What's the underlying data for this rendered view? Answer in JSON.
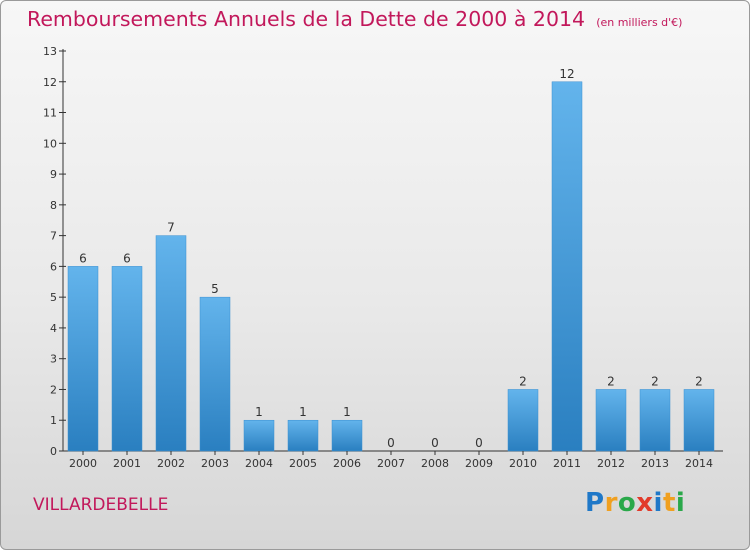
{
  "title": "Remboursements Annuels de la Dette de 2000 à 2014",
  "unit_note": "(en milliers d'€)",
  "commune": "VILLARDEBELLE",
  "brand": {
    "letters": [
      "P",
      "r",
      "o",
      "x",
      "i",
      "t",
      "i"
    ],
    "colors": [
      "#1f78c8",
      "#f0a020",
      "#2aa84a",
      "#e23a2a",
      "#1f78c8",
      "#f0a020",
      "#2aa84a"
    ]
  },
  "colors": {
    "title": "#c2185b",
    "bar_light": "#63b4ec",
    "bar_dark": "#2a7fc0",
    "axis": "#333333",
    "label": "#333333"
  },
  "chart_data": {
    "type": "bar",
    "categories": [
      "2000",
      "2001",
      "2002",
      "2003",
      "2004",
      "2005",
      "2006",
      "2007",
      "2008",
      "2009",
      "2010",
      "2011",
      "2012",
      "2013",
      "2014"
    ],
    "values": [
      6,
      6,
      7,
      5,
      1,
      1,
      1,
      0,
      0,
      0,
      2,
      12,
      2,
      2,
      2
    ],
    "data_labels": [
      "6",
      "6",
      "7",
      "5",
      "1",
      "1",
      "1",
      "0",
      "0",
      "0",
      "2",
      "12",
      "2",
      "2",
      "2"
    ],
    "ylim": [
      0,
      13
    ],
    "yticks": [
      "0",
      "1",
      "2",
      "3",
      "4",
      "5",
      "6",
      "7",
      "8",
      "9",
      "10",
      "11",
      "12",
      "13"
    ],
    "grid": false,
    "legend": "none"
  }
}
